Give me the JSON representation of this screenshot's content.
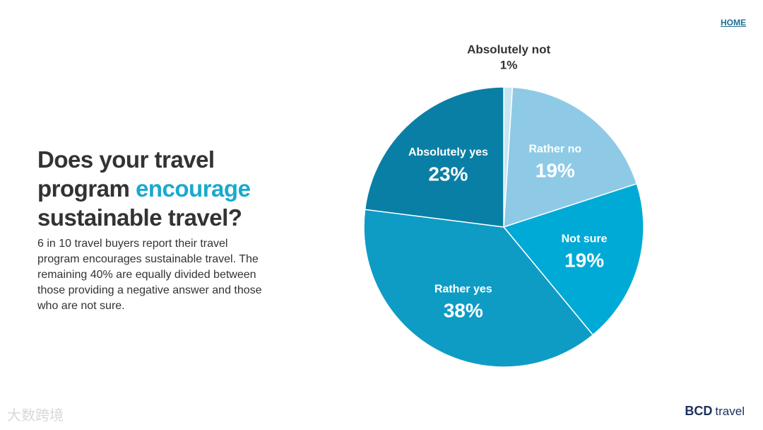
{
  "nav": {
    "home": "HOME"
  },
  "heading": [
    "Does your travel",
    "program",
    "encourage",
    "sustainable travel?"
  ],
  "body": "6 in 10 travel buyers report their travel program encourages sustainable travel. The remaining 40% are equally divided between those providing a negative answer and those who are not sure.",
  "logo": {
    "brand": "BCD",
    "suffix": "travel"
  },
  "watermark": "大数跨境",
  "chart_data": {
    "type": "pie",
    "categories": [
      "Absolutely not",
      "Rather no",
      "Not sure",
      "Rather yes",
      "Absolutely yes"
    ],
    "values": [
      1,
      19,
      19,
      38,
      23
    ],
    "value_labels": [
      "1%",
      "19%",
      "19%",
      "38%",
      "23%"
    ],
    "colors": [
      "#c8e5f2",
      "#8ecae6",
      "#00aad6",
      "#0e9cc5",
      "#0a7fa5"
    ]
  }
}
